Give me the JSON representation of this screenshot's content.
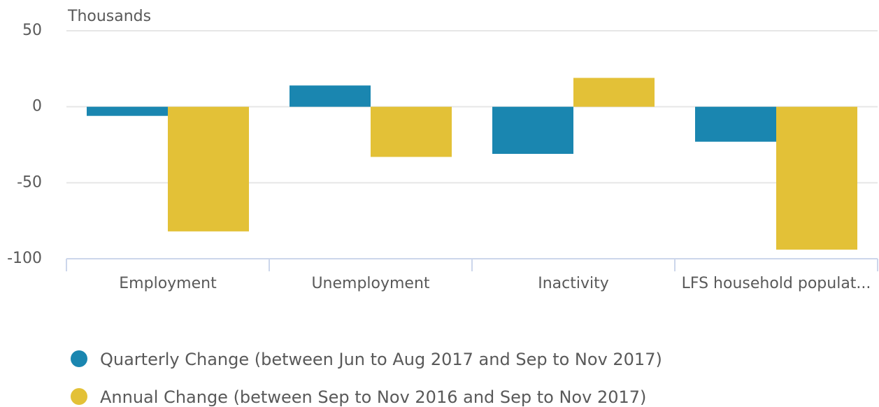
{
  "chart_data": {
    "type": "bar",
    "y_axis_label": "Thousands",
    "categories": [
      "Employment",
      "Unemployment",
      "Inactivity",
      "LFS household populat..."
    ],
    "series": [
      {
        "name": "Quarterly Change (between Jun to Aug 2017 and Sep to Nov 2017)",
        "color": "#1a86b0",
        "values": [
          -6,
          14,
          -31,
          -23
        ]
      },
      {
        "name": "Annual Change (between Sep to Nov 2016 and Sep to Nov 2017)",
        "color": "#e3c137",
        "values": [
          -82,
          -33,
          19,
          -94
        ]
      }
    ],
    "ylim": [
      -100,
      50
    ],
    "yticks": [
      -100,
      -50,
      0,
      50
    ],
    "grid": true,
    "legend": "bottom"
  }
}
